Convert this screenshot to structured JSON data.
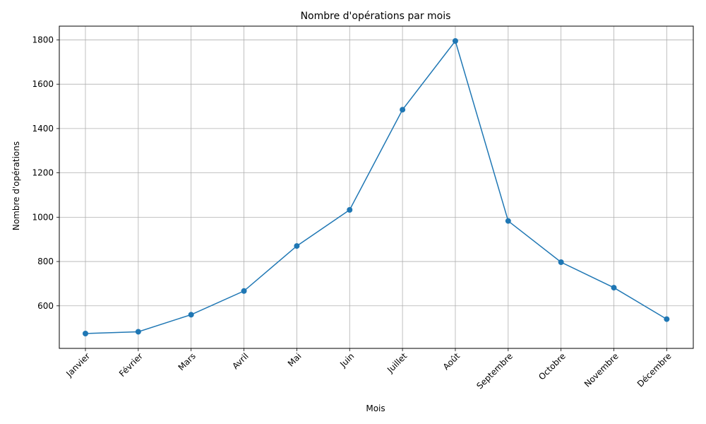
{
  "chart_data": {
    "type": "line",
    "title": "Nombre d'opérations par mois",
    "xlabel": "Mois",
    "ylabel": "Nombre d'opérations",
    "categories": [
      "Janvier",
      "Février",
      "Mars",
      "Avril",
      "Mai",
      "Juin",
      "Juillet",
      "Août",
      "Septembre",
      "Octobre",
      "Novembre",
      "Décembre"
    ],
    "series": [
      {
        "values": [
          475,
          483,
          560,
          667,
          870,
          1033,
          1485,
          1795,
          983,
          797,
          682,
          540
        ]
      }
    ],
    "yticks": [
      600,
      800,
      1000,
      1200,
      1400,
      1600,
      1800
    ],
    "ylim": [
      408,
      1862
    ],
    "grid": true,
    "line_color": "#1f77b4",
    "marker": "circle"
  }
}
